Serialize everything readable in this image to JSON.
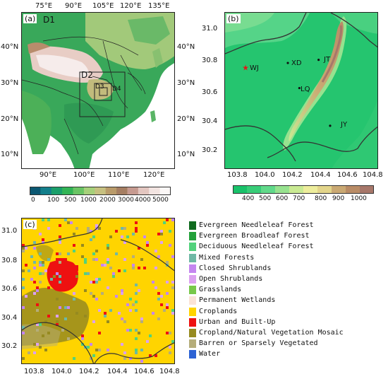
{
  "panel_a": {
    "label": "(a)",
    "domains": [
      "D1",
      "D2",
      "D3",
      "D4"
    ],
    "top_ticks": [
      "75°E",
      "90°E",
      "105°E",
      "120°E",
      "135°E"
    ],
    "bottom_ticks": [
      "90°E",
      "100°E",
      "110°E",
      "120°E"
    ],
    "left_ticks": [
      "40°N",
      "30°N",
      "20°N",
      "10°N"
    ],
    "right_ticks": [
      "40°N",
      "30°N",
      "20°N",
      "10°N"
    ],
    "colorbar": {
      "ticks": [
        "0",
        "100",
        "500",
        "1000",
        "2000",
        "3000",
        "4000",
        "5000"
      ],
      "colors": [
        "#0b5872",
        "#137f8b",
        "#1a9f6a",
        "#32b455",
        "#6ac464",
        "#a6d07a",
        "#c6c080",
        "#b99b6a",
        "#a57e62",
        "#c69a90",
        "#e3c6c0",
        "#f2e4e1",
        "#fbf7f6"
      ]
    }
  },
  "panel_b": {
    "label": "(b)",
    "stations": [
      {
        "name": "WJ",
        "lon": 103.86,
        "lat": 30.75,
        "marker": "star"
      },
      {
        "name": "XD",
        "lon": 104.19,
        "lat": 30.78,
        "marker": "dot"
      },
      {
        "name": "JT",
        "lon": 104.43,
        "lat": 30.8,
        "marker": "dot"
      },
      {
        "name": "LQ",
        "lon": 104.28,
        "lat": 30.62,
        "marker": "dot"
      },
      {
        "name": "JY",
        "lon": 104.52,
        "lat": 30.38,
        "marker": "dot"
      }
    ],
    "x_ticks": [
      "103.8",
      "104.0",
      "104.2",
      "104.4",
      "104.6",
      "104.8"
    ],
    "y_ticks": [
      "31.0",
      "30.8",
      "30.6",
      "30.4",
      "30.2"
    ],
    "colorbar": {
      "ticks": [
        "400",
        "500",
        "600",
        "700",
        "800",
        "900",
        "1000"
      ],
      "colors": [
        "#19c26a",
        "#38cd78",
        "#61d98a",
        "#97e28f",
        "#c9ea93",
        "#eded9c",
        "#e3d58b",
        "#caa973",
        "#b98c66",
        "#a7776a"
      ]
    }
  },
  "panel_c": {
    "label": "(c)",
    "x_ticks": [
      "103.8",
      "104.0",
      "104.2",
      "104.4",
      "104.6",
      "104.8"
    ],
    "y_ticks": [
      "31.0",
      "30.8",
      "30.6",
      "30.4",
      "30.2"
    ]
  },
  "legend": [
    {
      "label": "Evergreen Needleleaf Forest",
      "color": "#0f6a1e"
    },
    {
      "label": "Evergreen Broadleaf Forest",
      "color": "#23a13b"
    },
    {
      "label": "Deciduous Needleleaf Forest",
      "color": "#52d27c"
    },
    {
      "label": "Mixed Forests",
      "color": "#6fb8a5"
    },
    {
      "label": "Closed Shrublands",
      "color": "#c586f0"
    },
    {
      "label": "Open Shrublands",
      "color": "#dca1f0"
    },
    {
      "label": "Grasslands",
      "color": "#78c84a"
    },
    {
      "label": "Permanent Wetlands",
      "color": "#fbe3d6"
    },
    {
      "label": "Croplands",
      "color": "#ffd400"
    },
    {
      "label": "Urban and Built-Up",
      "color": "#ee1111"
    },
    {
      "label": "Cropland/Natural Vegetation Mosaic",
      "color": "#968a20"
    },
    {
      "label": "Barren or Sparsely Vegetated",
      "color": "#b5ad7a"
    },
    {
      "label": "Water",
      "color": "#2c62d4"
    }
  ]
}
